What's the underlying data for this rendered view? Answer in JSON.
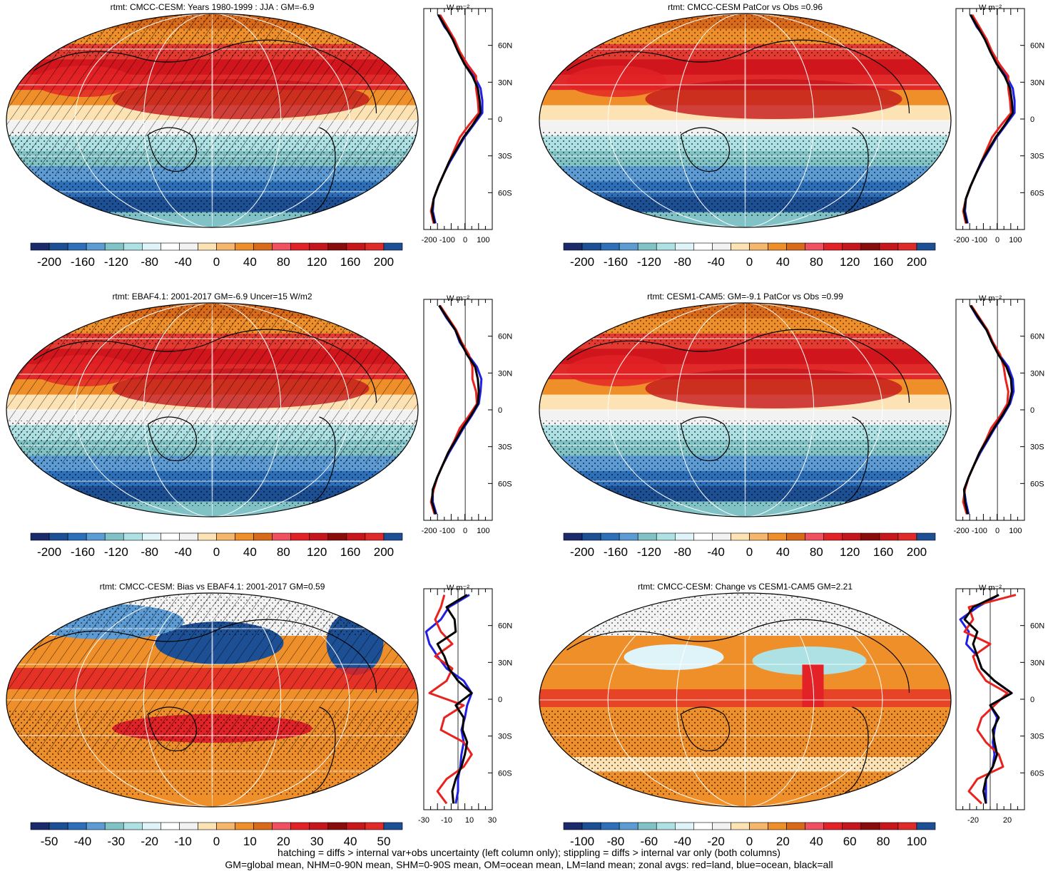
{
  "colors": {
    "land": "#e8221e",
    "ocean": "#1f1fe6",
    "all": "#000000",
    "palette": [
      "#1b2a6b",
      "#1d4f94",
      "#2d6fb8",
      "#5c9bd3",
      "#80c2c6",
      "#aee1e3",
      "#dff4f8",
      "#ffffff",
      "#f2f2f2",
      "#fde2b3",
      "#f6b66b",
      "#ef8f2a",
      "#d96a1a",
      "#f05060",
      "#e22226",
      "#c4161c",
      "#8b0c0c",
      "#c8171c",
      "#e02a2a",
      "#1d4f94"
    ]
  },
  "footer": {
    "line1": "hatching = diffs > internal var+obs uncertainty (left column only); stippling = diffs > internal var only (both columns)",
    "line2": "GM=global mean, NHM=0-90N mean, SHM=0-90S mean, OM=ocean mean, LM=land mean; zonal avgs: red=land, blue=ocean, black=all"
  },
  "chart_data": [
    {
      "type": "heatmap",
      "title": "rtmt: CMCC-CESM: Years 1980-1999 : JJA : GM=-6.9",
      "field": "climatology",
      "hatching": true,
      "colorbar_ticks": [
        "-200",
        "-160",
        "-120",
        "-80",
        "-40",
        "0",
        "40",
        "80",
        "120",
        "160",
        "200"
      ],
      "zonal_units": "W m⁻²",
      "zonal_xticks": [
        "-200",
        "-100",
        "0",
        "100"
      ],
      "zonal_xlim": [
        -230,
        150
      ],
      "lat_ticks": [
        "60N",
        "30N",
        "0",
        "30S",
        "60S"
      ],
      "zonal": {
        "lat": [
          85,
          75,
          65,
          55,
          45,
          35,
          25,
          15,
          5,
          -5,
          -15,
          -25,
          -35,
          -45,
          -55,
          -65,
          -75,
          -85
        ],
        "all": [
          -150,
          -110,
          -70,
          -40,
          -5,
          40,
          70,
          80,
          85,
          40,
          -10,
          -50,
          -90,
          -120,
          -150,
          -175,
          -185,
          -170
        ],
        "land": [
          -140,
          -100,
          -60,
          -30,
          10,
          60,
          60,
          70,
          75,
          20,
          -30,
          -60,
          -90,
          -120,
          -150,
          -175,
          -190,
          -175
        ],
        "ocean": [
          -150,
          -115,
          -60,
          -35,
          10,
          50,
          85,
          95,
          95,
          45,
          -5,
          -45,
          -85,
          -120,
          -150,
          -175,
          -180,
          -165
        ]
      }
    },
    {
      "type": "heatmap",
      "title": "rtmt: CMCC-CESM PatCor vs Obs =0.96",
      "field": "climatology",
      "hatching": false,
      "colorbar_ticks": [
        "-200",
        "-160",
        "-120",
        "-80",
        "-40",
        "0",
        "40",
        "80",
        "120",
        "160",
        "200"
      ],
      "zonal_units": "W m⁻²",
      "zonal_xticks": [
        "-200",
        "-100",
        "0",
        "100"
      ],
      "zonal_xlim": [
        -230,
        150
      ],
      "lat_ticks": [
        "60N",
        "30N",
        "0",
        "30S",
        "60S"
      ],
      "zonal": {
        "lat": [
          85,
          75,
          65,
          55,
          45,
          35,
          25,
          15,
          5,
          -5,
          -15,
          -25,
          -35,
          -45,
          -55,
          -65,
          -75,
          -85
        ],
        "all": [
          -150,
          -110,
          -70,
          -40,
          -5,
          40,
          70,
          80,
          85,
          40,
          -10,
          -50,
          -90,
          -120,
          -150,
          -175,
          -185,
          -170
        ],
        "land": [
          -140,
          -100,
          -60,
          -30,
          10,
          60,
          60,
          70,
          75,
          20,
          -30,
          -60,
          -90,
          -120,
          -150,
          -175,
          -190,
          -175
        ],
        "ocean": [
          -150,
          -115,
          -60,
          -35,
          10,
          50,
          85,
          95,
          95,
          45,
          -5,
          -45,
          -85,
          -120,
          -150,
          -175,
          -180,
          -165
        ]
      }
    },
    {
      "type": "heatmap",
      "title": "rtmt: EBAF4.1: 2001-2017 GM=-6.9 Uncer=15 W/m2",
      "field": "climatology",
      "hatching": true,
      "colorbar_ticks": [
        "-200",
        "-160",
        "-120",
        "-80",
        "-40",
        "0",
        "40",
        "80",
        "120",
        "160",
        "200"
      ],
      "zonal_units": "W m⁻²",
      "zonal_xticks": [
        "-200",
        "-100",
        "0",
        "100"
      ],
      "zonal_xlim": [
        -230,
        150
      ],
      "lat_ticks": [
        "60N",
        "30N",
        "0",
        "30S",
        "60S"
      ],
      "zonal": {
        "lat": [
          85,
          75,
          65,
          55,
          45,
          35,
          25,
          15,
          5,
          -5,
          -15,
          -25,
          -35,
          -45,
          -55,
          -65,
          -75,
          -85
        ],
        "all": [
          -145,
          -100,
          -55,
          -25,
          10,
          55,
          70,
          75,
          70,
          30,
          -15,
          -55,
          -95,
          -125,
          -155,
          -180,
          -185,
          -165
        ],
        "land": [
          -140,
          -95,
          -50,
          -20,
          20,
          40,
          40,
          60,
          65,
          20,
          -30,
          -60,
          -95,
          -125,
          -155,
          -175,
          -190,
          -170
        ],
        "ocean": [
          -145,
          -105,
          -55,
          -30,
          15,
          65,
          90,
          85,
          75,
          35,
          -10,
          -50,
          -90,
          -125,
          -155,
          -180,
          -180,
          -160
        ]
      }
    },
    {
      "type": "heatmap",
      "title": "rtmt: CESM1-CAM5: GM=-9.1 PatCor vs Obs =0.99",
      "field": "climatology",
      "hatching": false,
      "colorbar_ticks": [
        "-200",
        "-160",
        "-120",
        "-80",
        "-40",
        "0",
        "40",
        "80",
        "120",
        "160",
        "200"
      ],
      "zonal_units": "W m⁻²",
      "zonal_xticks": [
        "-200",
        "-100",
        "0",
        "100"
      ],
      "zonal_xlim": [
        -230,
        150
      ],
      "lat_ticks": [
        "60N",
        "30N",
        "0",
        "30S",
        "60S"
      ],
      "zonal": {
        "lat": [
          85,
          75,
          65,
          55,
          45,
          35,
          25,
          15,
          5,
          -5,
          -15,
          -25,
          -35,
          -45,
          -55,
          -65,
          -75,
          -85
        ],
        "all": [
          -150,
          -105,
          -60,
          -30,
          5,
          50,
          75,
          80,
          65,
          25,
          -20,
          -60,
          -100,
          -130,
          -160,
          -185,
          -180,
          -165
        ],
        "land": [
          -145,
          -100,
          -55,
          -25,
          15,
          35,
          45,
          60,
          55,
          15,
          -35,
          -65,
          -100,
          -130,
          -160,
          -180,
          -190,
          -170
        ],
        "ocean": [
          -150,
          -110,
          -60,
          -30,
          10,
          60,
          85,
          90,
          70,
          30,
          -15,
          -55,
          -95,
          -130,
          -160,
          -185,
          -175,
          -160
        ]
      }
    },
    {
      "type": "heatmap",
      "title": "rtmt: CMCC-CESM: Bias vs EBAF4.1: 2001-2017 GM=0.59",
      "field": "difference",
      "hatching": true,
      "colorbar_ticks": [
        "-50",
        "-40",
        "-30",
        "-20",
        "-10",
        "0",
        "10",
        "20",
        "30",
        "40",
        "50"
      ],
      "zonal_units": "W m⁻²",
      "zonal_xticks": [
        "-30",
        "-10",
        "10",
        "30"
      ],
      "zonal_xlim": [
        -30,
        30
      ],
      "lat_ticks": [
        "60N",
        "30N",
        "0",
        "30S",
        "60S"
      ],
      "zonal": {
        "lat": [
          85,
          75,
          65,
          55,
          45,
          35,
          25,
          15,
          5,
          -5,
          -15,
          -25,
          -35,
          -45,
          -55,
          -65,
          -75,
          -85
        ],
        "all": [
          8,
          -10,
          -3,
          -2,
          -18,
          -12,
          -8,
          0,
          12,
          -2,
          5,
          4,
          8,
          6,
          3,
          -2,
          -5,
          -4
        ],
        "land": [
          -12,
          -15,
          -20,
          -15,
          -5,
          -20,
          -5,
          -10,
          -25,
          5,
          -12,
          -15,
          5,
          12,
          5,
          -10,
          -18,
          -10
        ],
        "ocean": [
          10,
          -8,
          -15,
          -28,
          -25,
          -18,
          -10,
          5,
          12,
          8,
          6,
          3,
          5,
          3,
          2,
          0,
          0,
          -2
        ]
      }
    },
    {
      "type": "heatmap",
      "title": "rtmt: CMCC-CESM: Change vs CESM1-CAM5 GM=2.21",
      "field": "difference",
      "hatching": false,
      "colorbar_ticks": [
        "-100",
        "-80",
        "-60",
        "-40",
        "-20",
        "0",
        "20",
        "40",
        "60",
        "80",
        "100"
      ],
      "zonal_units": "W m⁻²",
      "zonal_xticks": [
        "-20",
        "20"
      ],
      "zonal_xlim": [
        -40,
        40
      ],
      "lat_ticks": [
        "60N",
        "30N",
        "0",
        "30S",
        "60S"
      ],
      "zonal": {
        "lat": [
          85,
          75,
          65,
          55,
          45,
          35,
          25,
          15,
          5,
          -5,
          -15,
          -25,
          -35,
          -45,
          -55,
          -65,
          -75,
          -85
        ],
        "all": [
          10,
          -20,
          -30,
          -15,
          -20,
          -15,
          -10,
          5,
          25,
          0,
          10,
          3,
          5,
          8,
          3,
          -5,
          -8,
          -5
        ],
        "land": [
          30,
          -25,
          -20,
          -30,
          0,
          -20,
          -15,
          -5,
          20,
          5,
          -10,
          -15,
          -5,
          10,
          15,
          -15,
          -25,
          -10
        ],
        "ocean": [
          10,
          -15,
          -35,
          -25,
          -28,
          -15,
          -10,
          5,
          25,
          0,
          8,
          5,
          3,
          5,
          3,
          -5,
          -5,
          -5
        ]
      }
    }
  ]
}
